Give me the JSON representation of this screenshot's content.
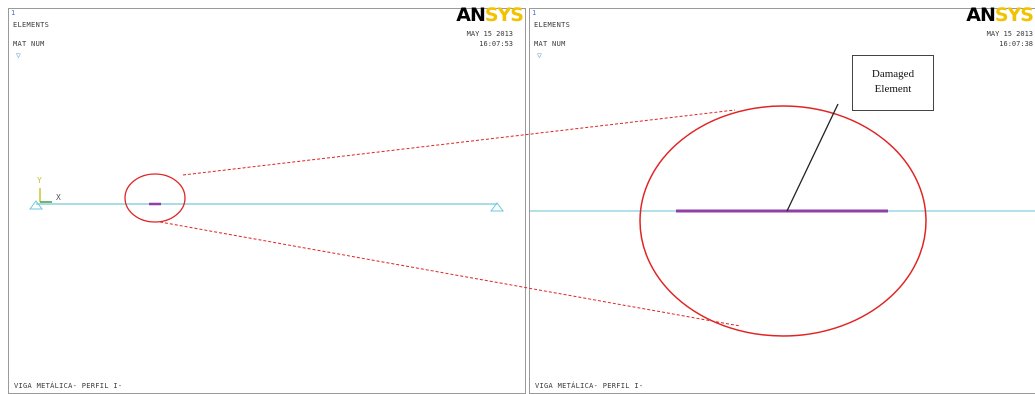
{
  "viewports": [
    {
      "window_number": "1",
      "title": "ELEMENTS",
      "subtitle": "MAT  NUM",
      "date": "MAY 15 2013",
      "time": "16:07:53",
      "brand_an": "AN",
      "brand_sys": "SYS",
      "caption": "VIGA METÁLICA- PERFIL I-",
      "axis_y": "Y",
      "axis_x": "X"
    },
    {
      "window_number": "1",
      "title": "ELEMENTS",
      "subtitle": "MAT  NUM",
      "date": "MAY 15 2013",
      "time": "16:07:38",
      "brand_an": "AN",
      "brand_sys": "SYS",
      "caption": "VIGA METÁLICA- PERFIL I-"
    }
  ],
  "callout": {
    "line1": "Damaged",
    "line2": "Element"
  },
  "colors": {
    "beam": "#a8dde6",
    "damaged_element": "#8e3fa8",
    "highlight_circle": "#e02424",
    "support": "#6ec8dc",
    "axis_y": "#c9c230",
    "axis_x": "#3fa044"
  }
}
